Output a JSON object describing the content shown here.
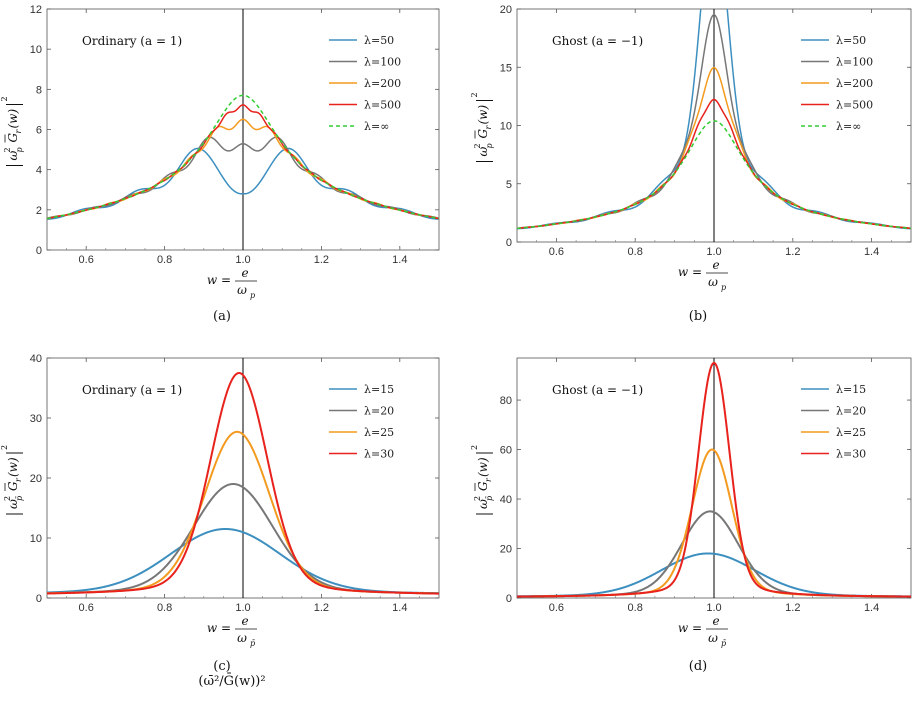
{
  "caption_fragment": "(ω̄²/Ḡ(w))²",
  "chart_data": [
    {
      "panel": "(a)",
      "type": "line",
      "annotation": "Ordinary (a = 1)",
      "xlabel": "w = e/ω_p",
      "xlabel_parts": {
        "lhs": "w =",
        "num": "e",
        "den": "ω",
        "den_sub": "p"
      },
      "ylabel_parts": {
        "omega": "ω",
        "sup": "2",
        "sub": "p",
        "G": "G",
        "Gsub": "r",
        "arg": "(w)",
        "outer_sup": "2"
      },
      "xlim": [
        0.5,
        1.5
      ],
      "ylim": [
        0,
        12
      ],
      "xticks": [
        0.6,
        0.8,
        1.0,
        1.2,
        1.4
      ],
      "xtick_labels": [
        "0.6",
        "0.8",
        "1.0",
        "1.2",
        "1.4"
      ],
      "yticks": [
        0,
        2,
        4,
        6,
        8,
        10,
        12
      ],
      "ytick_labels": [
        "0",
        "2",
        "4",
        "6",
        "8",
        "10",
        "12"
      ],
      "vline_x": 1.0,
      "legend_position": "top-right",
      "envelope": {
        "amp": 7.7,
        "width": 0.11,
        "shape": "lorentz",
        "base": 0.35
      },
      "series": [
        {
          "name": "λ=50",
          "lambda": 50,
          "color": "#3d8fbf",
          "style": "solid"
        },
        {
          "name": "λ=100",
          "lambda": 100,
          "color": "#777777",
          "style": "solid"
        },
        {
          "name": "λ=200",
          "lambda": 200,
          "color": "#f39a1f",
          "style": "solid"
        },
        {
          "name": "λ=500",
          "lambda": 500,
          "color": "#e8221c",
          "style": "solid"
        },
        {
          "name": "λ=∞",
          "lambda": null,
          "color": "#33cc33",
          "style": "dashed"
        }
      ]
    },
    {
      "panel": "(b)",
      "type": "line",
      "annotation": "Ghost (a = −1)",
      "xlabel": "w = e/ω_p",
      "xlabel_parts": {
        "lhs": "w =",
        "num": "e",
        "den": "ω",
        "den_sub": "p"
      },
      "ylabel_parts": {
        "omega": "ω",
        "sup": "2",
        "sub": "p",
        "G": "G",
        "Gsub": "r",
        "arg": "(w)",
        "outer_sup": "2"
      },
      "xlim": [
        0.5,
        1.5
      ],
      "ylim": [
        0,
        20
      ],
      "xticks": [
        0.6,
        0.8,
        1.0,
        1.2,
        1.4
      ],
      "xtick_labels": [
        "0.6",
        "0.8",
        "1.0",
        "1.2",
        "1.4"
      ],
      "yticks": [
        0,
        5,
        10,
        15,
        20
      ],
      "ytick_labels": [
        "0",
        "5",
        "10",
        "15",
        "20"
      ],
      "vline_x": 1.0,
      "legend_position": "top-right",
      "envelope": {
        "amp": 10.4,
        "width": 0.095,
        "shape": "lorentz",
        "base": 0.2
      },
      "series": [
        {
          "name": "λ=50",
          "lambda": 50,
          "color": "#3d8fbf",
          "style": "solid"
        },
        {
          "name": "λ=100",
          "lambda": 100,
          "color": "#777777",
          "style": "solid"
        },
        {
          "name": "λ=200",
          "lambda": 200,
          "color": "#f39a1f",
          "style": "solid"
        },
        {
          "name": "λ=500",
          "lambda": 500,
          "color": "#e8221c",
          "style": "solid"
        },
        {
          "name": "λ=∞",
          "lambda": null,
          "color": "#33cc33",
          "style": "dashed"
        }
      ]
    },
    {
      "panel": "(c)",
      "type": "line",
      "annotation": "Ordinary (a = 1)",
      "xlabel": "w = e/ω_p̄",
      "xlabel_parts": {
        "lhs": "w =",
        "num": "e",
        "den": "ω",
        "den_sub": "p̄"
      },
      "ylabel_parts": {
        "omega": "ω",
        "sup": "2",
        "sub": "p̄",
        "G": "G",
        "Gsub": "r",
        "arg": "(w)",
        "outer_sup": "2"
      },
      "xlim": [
        0.5,
        1.5
      ],
      "ylim": [
        0,
        40
      ],
      "xticks": [
        0.6,
        0.8,
        1.0,
        1.2,
        1.4
      ],
      "xtick_labels": [
        "0.6",
        "0.8",
        "1.0",
        "1.2",
        "1.4"
      ],
      "yticks": [
        0,
        10,
        20,
        30,
        40
      ],
      "ytick_labels": [
        "0",
        "10",
        "20",
        "30",
        "40"
      ],
      "vline_x": 1.0,
      "legend_position": "top-right",
      "series": [
        {
          "name": "λ=15",
          "color": "#3d8fbf",
          "peak": 11.5,
          "center": 0.955,
          "width": 0.195,
          "base": 0.55
        },
        {
          "name": "λ=20",
          "color": "#777777",
          "peak": 19.0,
          "center": 0.975,
          "width": 0.14,
          "base": 0.5
        },
        {
          "name": "λ=25",
          "color": "#f39a1f",
          "peak": 27.7,
          "center": 0.985,
          "width": 0.115,
          "base": 0.45
        },
        {
          "name": "λ=30",
          "color": "#e8221c",
          "peak": 37.5,
          "center": 0.99,
          "width": 0.1,
          "base": 0.4
        }
      ]
    },
    {
      "panel": "(d)",
      "type": "line",
      "annotation": "Ghost (a = −1)",
      "xlabel": "w = e/ω_p̄",
      "xlabel_parts": {
        "lhs": "w =",
        "num": "e",
        "den": "ω",
        "den_sub": "p̄"
      },
      "ylabel_parts": {
        "omega": "ω",
        "sup": "2",
        "sub": "p̄",
        "G": "G",
        "Gsub": "r",
        "arg": "(w)",
        "outer_sup": "2"
      },
      "xlim": [
        0.5,
        1.5
      ],
      "ylim": [
        0,
        97
      ],
      "xticks": [
        0.6,
        0.8,
        1.0,
        1.2,
        1.4
      ],
      "xtick_labels": [
        "0.6",
        "0.8",
        "1.0",
        "1.2",
        "1.4"
      ],
      "yticks": [
        0,
        20,
        40,
        60,
        80
      ],
      "ytick_labels": [
        "0",
        "20",
        "40",
        "60",
        "80"
      ],
      "vline_x": 1.0,
      "legend_position": "top-right",
      "series": [
        {
          "name": "λ=15",
          "color": "#3d8fbf",
          "peak": 18.0,
          "center": 0.985,
          "width": 0.165,
          "base": 0.3
        },
        {
          "name": "λ=20",
          "color": "#777777",
          "peak": 35.0,
          "center": 0.99,
          "width": 0.1,
          "base": 0.3
        },
        {
          "name": "λ=25",
          "color": "#f39a1f",
          "peak": 60.0,
          "center": 0.995,
          "width": 0.07,
          "base": 0.3
        },
        {
          "name": "λ=30",
          "color": "#e8221c",
          "peak": 95.0,
          "center": 1.0,
          "width": 0.055,
          "base": 0.3
        }
      ]
    }
  ]
}
